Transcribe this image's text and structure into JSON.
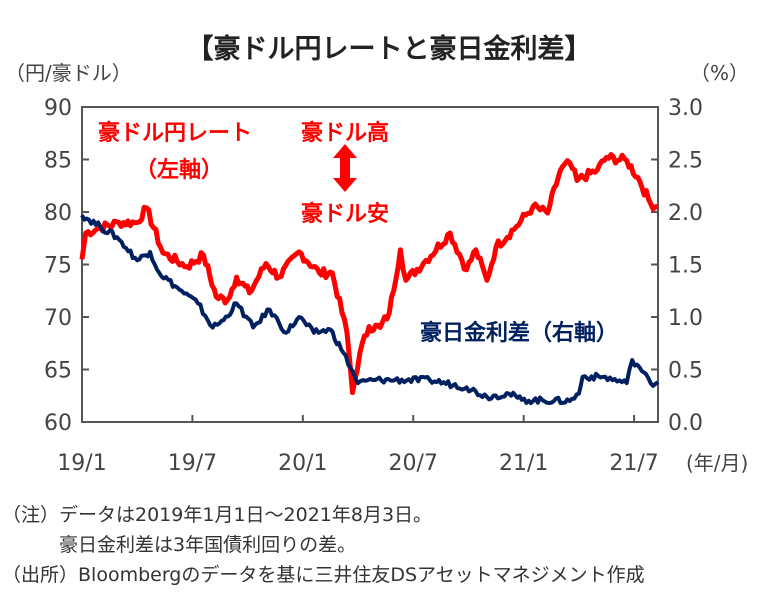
{
  "chart_data": {
    "type": "line",
    "title": "【豪ドル円レートと豪日金利差】",
    "y_left_label": "（円/豪ドル）",
    "y_right_label": "（%）",
    "x_unit_label": "(年/月)",
    "x_ticks": [
      {
        "m": 0,
        "label": "19/1"
      },
      {
        "m": 6,
        "label": "19/7"
      },
      {
        "m": 12,
        "label": "20/1"
      },
      {
        "m": 18,
        "label": "20/7"
      },
      {
        "m": 24,
        "label": "21/1"
      },
      {
        "m": 30,
        "label": "21/7"
      }
    ],
    "x_range_months_since_2019_01": [
      0,
      31.3
    ],
    "ylim_left": [
      60,
      90
    ],
    "ylim_right": [
      0,
      3
    ],
    "y_left_ticks": [
      "90",
      "85",
      "80",
      "75",
      "70",
      "65",
      "60"
    ],
    "y_right_ticks": [
      "3.0",
      "2.5",
      "2.0",
      "1.5",
      "1.0",
      "0.5",
      "0.0"
    ],
    "series": [
      {
        "name": "豪ドル円レート",
        "axis": "left",
        "color": "#ff0000",
        "label": "豪ドル円レート",
        "label2": "（左軸）",
        "points": [
          [
            0,
            75.5
          ],
          [
            0.2,
            78
          ],
          [
            1,
            78.5
          ],
          [
            2,
            79
          ],
          [
            3,
            79
          ],
          [
            3.5,
            80.4
          ],
          [
            4.4,
            76.1
          ],
          [
            5.7,
            74.8
          ],
          [
            6.6,
            75.9
          ],
          [
            7.3,
            71.9
          ],
          [
            7.9,
            71.6
          ],
          [
            8.4,
            73.8
          ],
          [
            9.1,
            72.3
          ],
          [
            10,
            75.1
          ],
          [
            10.7,
            73.8
          ],
          [
            11.8,
            76.2
          ],
          [
            12.9,
            74.2
          ],
          [
            13.6,
            74.2
          ],
          [
            14.4,
            68.5
          ],
          [
            14.7,
            62.8
          ],
          [
            15.1,
            66.6
          ],
          [
            15.6,
            69.1
          ],
          [
            16.2,
            69
          ],
          [
            16.7,
            70.4
          ],
          [
            17.3,
            76.4
          ],
          [
            17.6,
            73.5
          ],
          [
            18.7,
            75.4
          ],
          [
            20,
            78
          ],
          [
            20.9,
            74.5
          ],
          [
            21.4,
            76.4
          ],
          [
            22,
            73.5
          ],
          [
            22.5,
            76.7
          ],
          [
            23.6,
            78.6
          ],
          [
            24.5,
            80.5
          ],
          [
            25.3,
            79.9
          ],
          [
            26,
            84
          ],
          [
            26.5,
            84.7
          ],
          [
            26.9,
            83
          ],
          [
            28,
            84
          ],
          [
            28.5,
            85.2
          ],
          [
            29.6,
            84.9
          ],
          [
            30.2,
            83.3
          ],
          [
            30.9,
            80.8
          ],
          [
            31.3,
            80.5
          ]
        ]
      },
      {
        "name": "豪日金利差",
        "axis": "right",
        "color": "#002060",
        "label": "豪日金利差（右軸）",
        "points": [
          [
            0,
            1.97
          ],
          [
            1,
            1.86
          ],
          [
            1.9,
            1.76
          ],
          [
            3,
            1.54
          ],
          [
            3.7,
            1.62
          ],
          [
            4.2,
            1.42
          ],
          [
            5.3,
            1.26
          ],
          [
            6.3,
            1.13
          ],
          [
            7.1,
            0.9
          ],
          [
            7.7,
            0.97
          ],
          [
            8.4,
            1.13
          ],
          [
            9.3,
            0.9
          ],
          [
            10.2,
            1.07
          ],
          [
            11.1,
            0.85
          ],
          [
            11.8,
            1.0
          ],
          [
            12.6,
            0.85
          ],
          [
            13.5,
            0.88
          ],
          [
            14.2,
            0.66
          ],
          [
            15,
            0.37
          ],
          [
            15.8,
            0.4
          ],
          [
            17,
            0.4
          ],
          [
            18.9,
            0.4
          ],
          [
            20.9,
            0.33
          ],
          [
            22,
            0.24
          ],
          [
            23.2,
            0.27
          ],
          [
            23.9,
            0.21
          ],
          [
            26.5,
            0.2
          ],
          [
            27,
            0.27
          ],
          [
            27.2,
            0.43
          ],
          [
            28.3,
            0.43
          ],
          [
            29.6,
            0.37
          ],
          [
            29.9,
            0.59
          ],
          [
            30.3,
            0.52
          ],
          [
            30.9,
            0.37
          ],
          [
            31.3,
            0.38
          ]
        ]
      }
    ],
    "annotations": {
      "up": "豪ドル高",
      "down": "豪ドル安",
      "arrow_color": "#ff0000"
    }
  },
  "notes": [
    "（注）データは2019年1月1日～2021年8月3日。",
    "　　　豪日金利差は3年国債利回りの差。",
    "（出所）Bloombergのデータを基に三井住友DSアセットマネジメント作成"
  ]
}
